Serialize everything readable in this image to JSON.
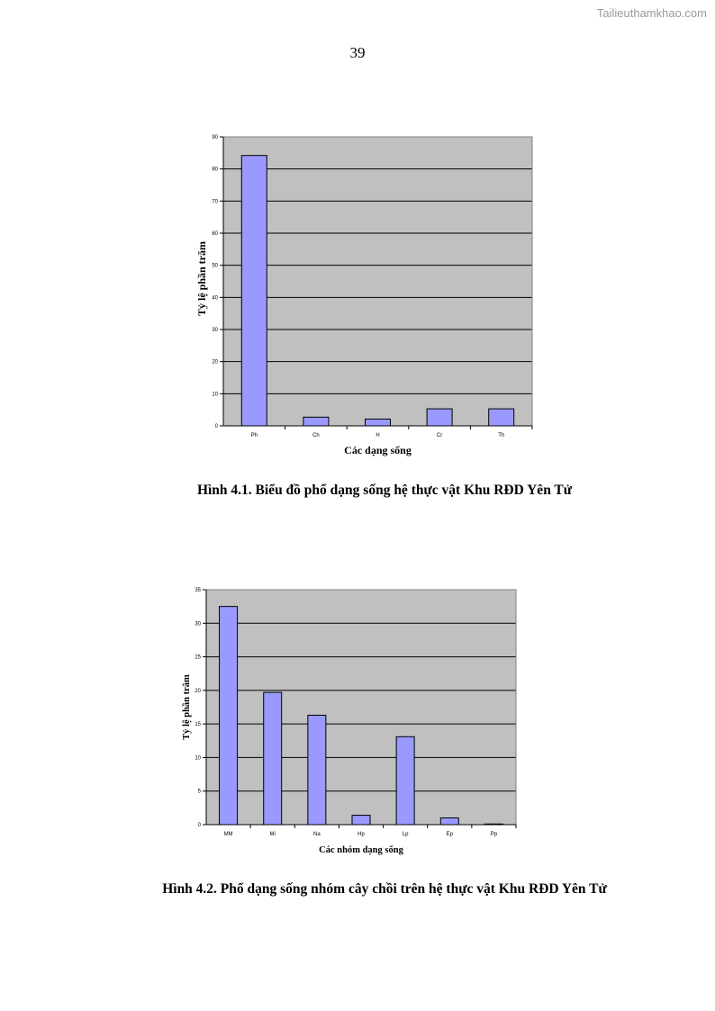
{
  "watermark": "Tailieuthamkhao.com",
  "page_number": "39",
  "figures": [
    {
      "caption": "Hình 4.1. Biểu đồ phổ dạng sống hệ thực vật Khu RĐD Yên Tử"
    },
    {
      "caption": "Hình 4.2. Phổ dạng sống nhóm cây chồi trên hệ thực vật Khu RĐD Yên Tử"
    }
  ],
  "chart_data": [
    {
      "type": "bar",
      "categories": [
        "Ph",
        "Ch",
        "H",
        "Cr",
        "Th"
      ],
      "values": [
        84.2,
        2.7,
        2.1,
        5.3,
        5.3
      ],
      "title": "",
      "xlabel": "Các dạng sống",
      "ylabel": "Tỷ lệ phần trăm",
      "ylim": [
        0,
        90
      ],
      "yticks": [
        0,
        10,
        20,
        30,
        40,
        50,
        60,
        70,
        80,
        90
      ],
      "grid": true,
      "colors": {
        "bar": "#9999ff",
        "plot_bg": "#c0c0c0",
        "border": "#000000"
      }
    },
    {
      "type": "bar",
      "categories": [
        "MM",
        "Mi",
        "Na",
        "Hp",
        "Lp",
        "Ep",
        "Pp"
      ],
      "values": [
        32.5,
        19.7,
        16.3,
        1.4,
        13.1,
        1.0,
        0.1
      ],
      "title": "",
      "xlabel": "Các nhóm dạng sống",
      "ylabel": "Tỷ lệ phần trăm",
      "ylim": [
        0,
        35
      ],
      "yticks": [
        0,
        5,
        10,
        15,
        20,
        25,
        30,
        35
      ],
      "grid": true,
      "colors": {
        "bar": "#9999ff",
        "plot_bg": "#c0c0c0",
        "border": "#000000"
      }
    }
  ]
}
